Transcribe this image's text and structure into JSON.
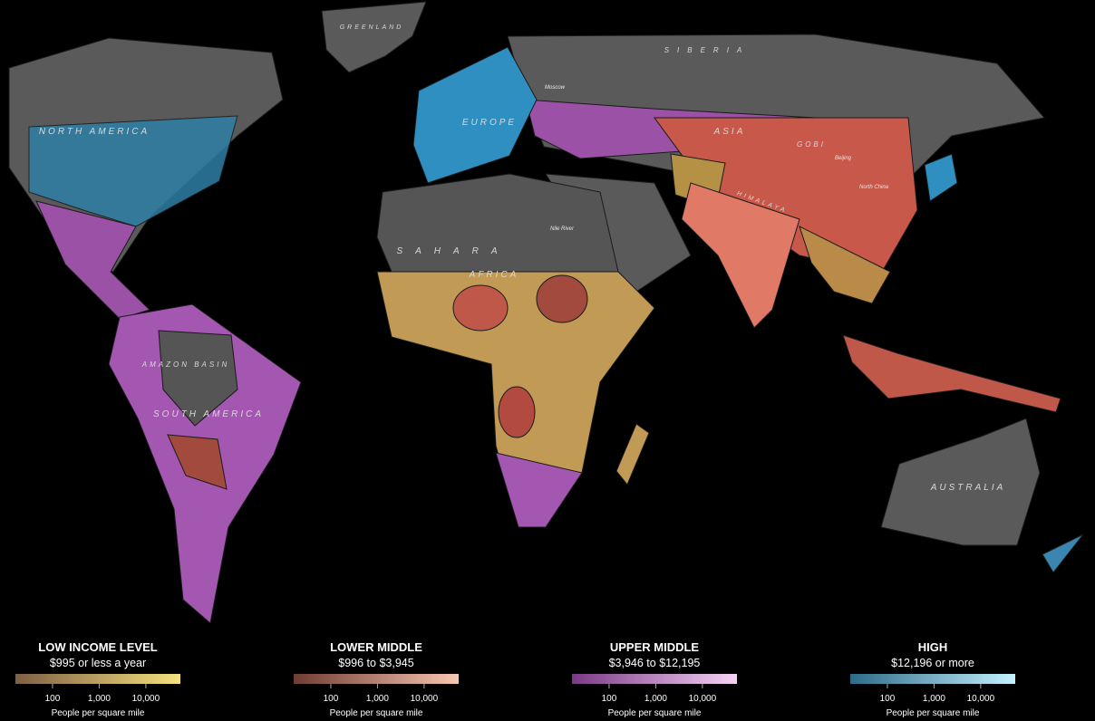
{
  "map": {
    "labels": [
      "GREENLAND",
      "SIBERIA",
      "NORTH AMERICA",
      "EUROPE",
      "ASIA",
      "GOBI",
      "HIMALAYA",
      "SAHARA",
      "AFRICA",
      "AMAZON BASIN",
      "SOUTH AMERICA",
      "AUSTRALIA",
      "Moscow",
      "Beijing",
      "North China",
      "Nile River"
    ]
  },
  "legend": [
    {
      "title": "LOW INCOME LEVEL",
      "range": "$995 or less a year",
      "colors": [
        "#7d5f45",
        "#f6e27c"
      ],
      "scale": "log",
      "xlim": [
        16,
        55000
      ],
      "xticks": [
        100,
        {
          "value": 1000,
          "label": "1,000"
        },
        {
          "value": 10000,
          "label": "10,000"
        }
      ],
      "axis_label": "People per square mile"
    },
    {
      "title": "LOWER MIDDLE",
      "range": "$996 to $3,945",
      "colors": [
        "#6e3c33",
        "#f8c7b2"
      ],
      "scale": "log",
      "xlim": [
        16,
        55000
      ],
      "xticks": [
        100,
        {
          "value": 1000,
          "label": "1,000"
        },
        {
          "value": 10000,
          "label": "10,000"
        }
      ],
      "axis_label": "People per square mile"
    },
    {
      "title": "UPPER MIDDLE",
      "range": "$3,946 to $12,195",
      "colors": [
        "#7a3a85",
        "#f6d3f4"
      ],
      "scale": "log",
      "xlim": [
        16,
        55000
      ],
      "xticks": [
        100,
        {
          "value": 1000,
          "label": "1,000"
        },
        {
          "value": 10000,
          "label": "10,000"
        }
      ],
      "axis_label": "People per square mile"
    },
    {
      "title": "HIGH",
      "range": "$12,196 or more",
      "colors": [
        "#2c6b88",
        "#c4f2ff"
      ],
      "scale": "log",
      "xlim": [
        16,
        55000
      ],
      "xticks": [
        100,
        {
          "value": 1000,
          "label": "1,000"
        },
        {
          "value": 10000,
          "label": "10,000"
        }
      ],
      "axis_label": "People per square mile"
    }
  ]
}
